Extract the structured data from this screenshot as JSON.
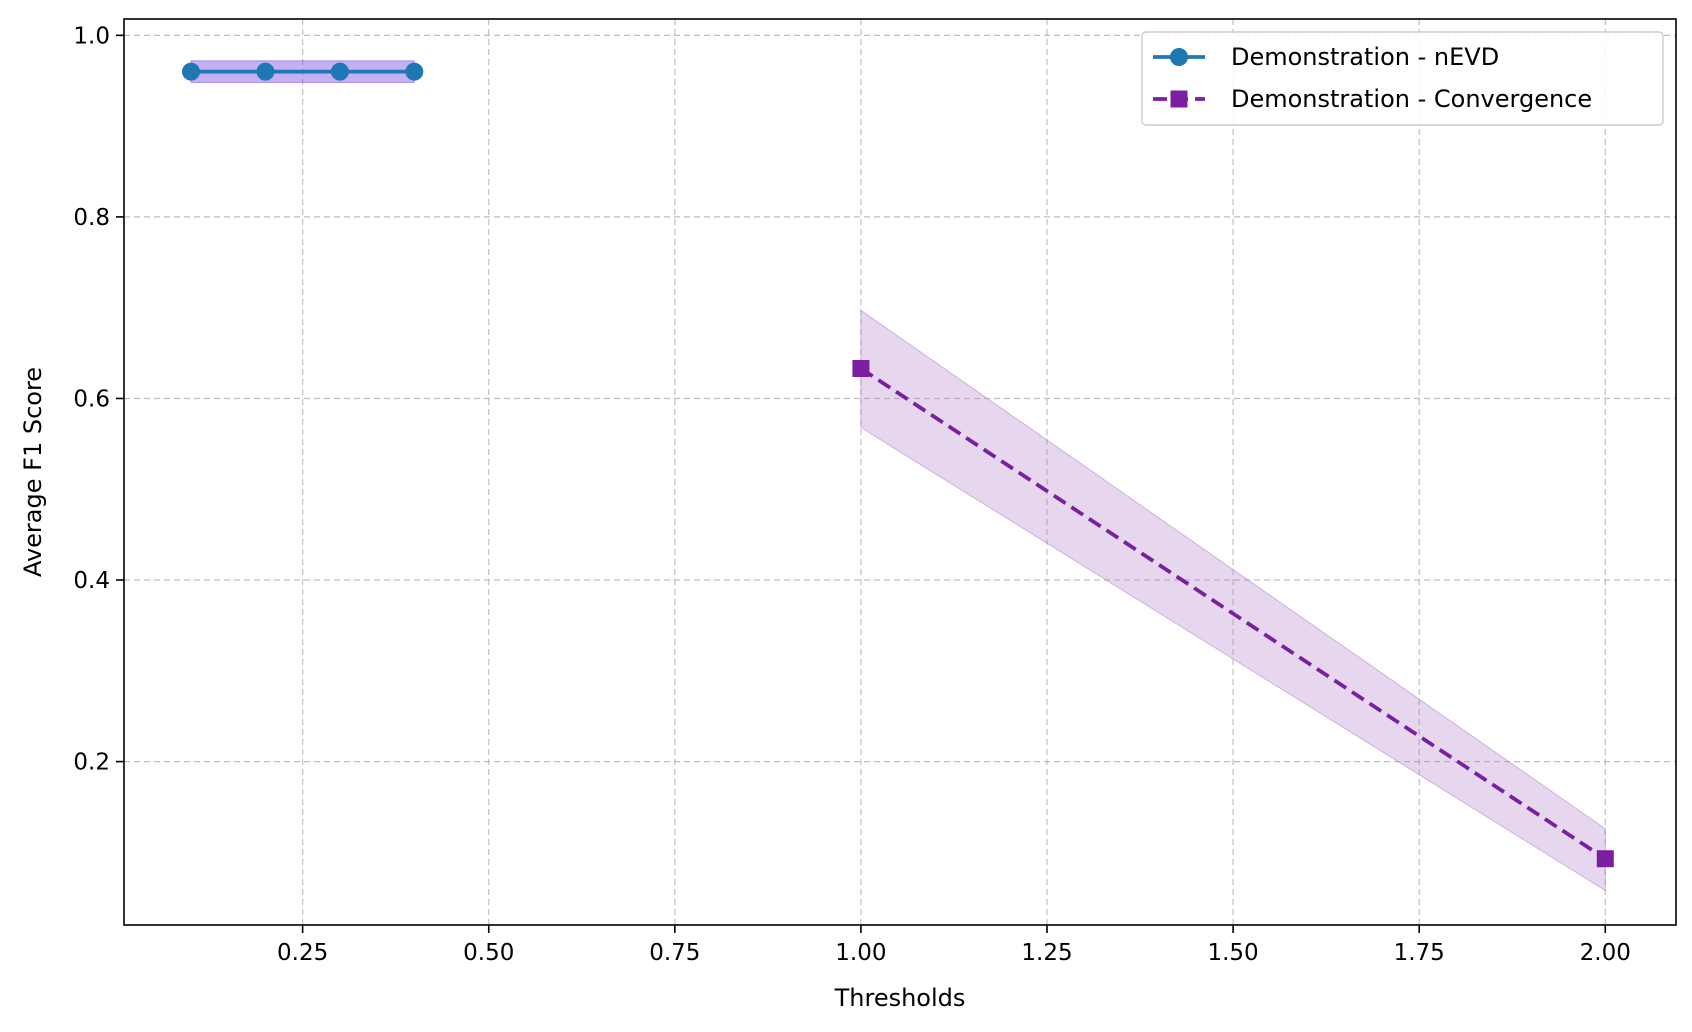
{
  "chart_data": {
    "type": "line",
    "title": "",
    "xlabel": "Thresholds",
    "ylabel": "Average F1 Score",
    "xlim": [
      0.01,
      2.095
    ],
    "ylim": [
      0.02,
      1.018
    ],
    "xticks": [
      0.25,
      0.5,
      0.75,
      1.0,
      1.25,
      1.5,
      1.75,
      2.0
    ],
    "xtick_labels": [
      "0.25",
      "0.50",
      "0.75",
      "1.00",
      "1.25",
      "1.50",
      "1.75",
      "2.00"
    ],
    "yticks": [
      0.2,
      0.4,
      0.6,
      0.8,
      1.0
    ],
    "ytick_labels": [
      "0.2",
      "0.4",
      "0.6",
      "0.8",
      "1.0"
    ],
    "grid": true,
    "legend_position": "top-right",
    "series": [
      {
        "name": "Demonstration - nEVD",
        "color": "#1f77b4",
        "band_color": "#7b52e0",
        "line_style": "solid",
        "marker": "circle",
        "x": [
          0.1,
          0.2,
          0.3,
          0.4
        ],
        "y": [
          0.96,
          0.96,
          0.96,
          0.96
        ],
        "lower": [
          0.948,
          0.948,
          0.948,
          0.948
        ],
        "upper": [
          0.972,
          0.972,
          0.972,
          0.972
        ]
      },
      {
        "name": "Demonstration - Convergence",
        "color": "#7b1fa2",
        "band_color": "#b07cc6",
        "line_style": "dashed",
        "marker": "square",
        "x": [
          1.0,
          2.0
        ],
        "y": [
          0.633,
          0.093
        ],
        "lower": [
          0.568,
          0.058
        ],
        "upper": [
          0.697,
          0.126
        ]
      }
    ]
  }
}
